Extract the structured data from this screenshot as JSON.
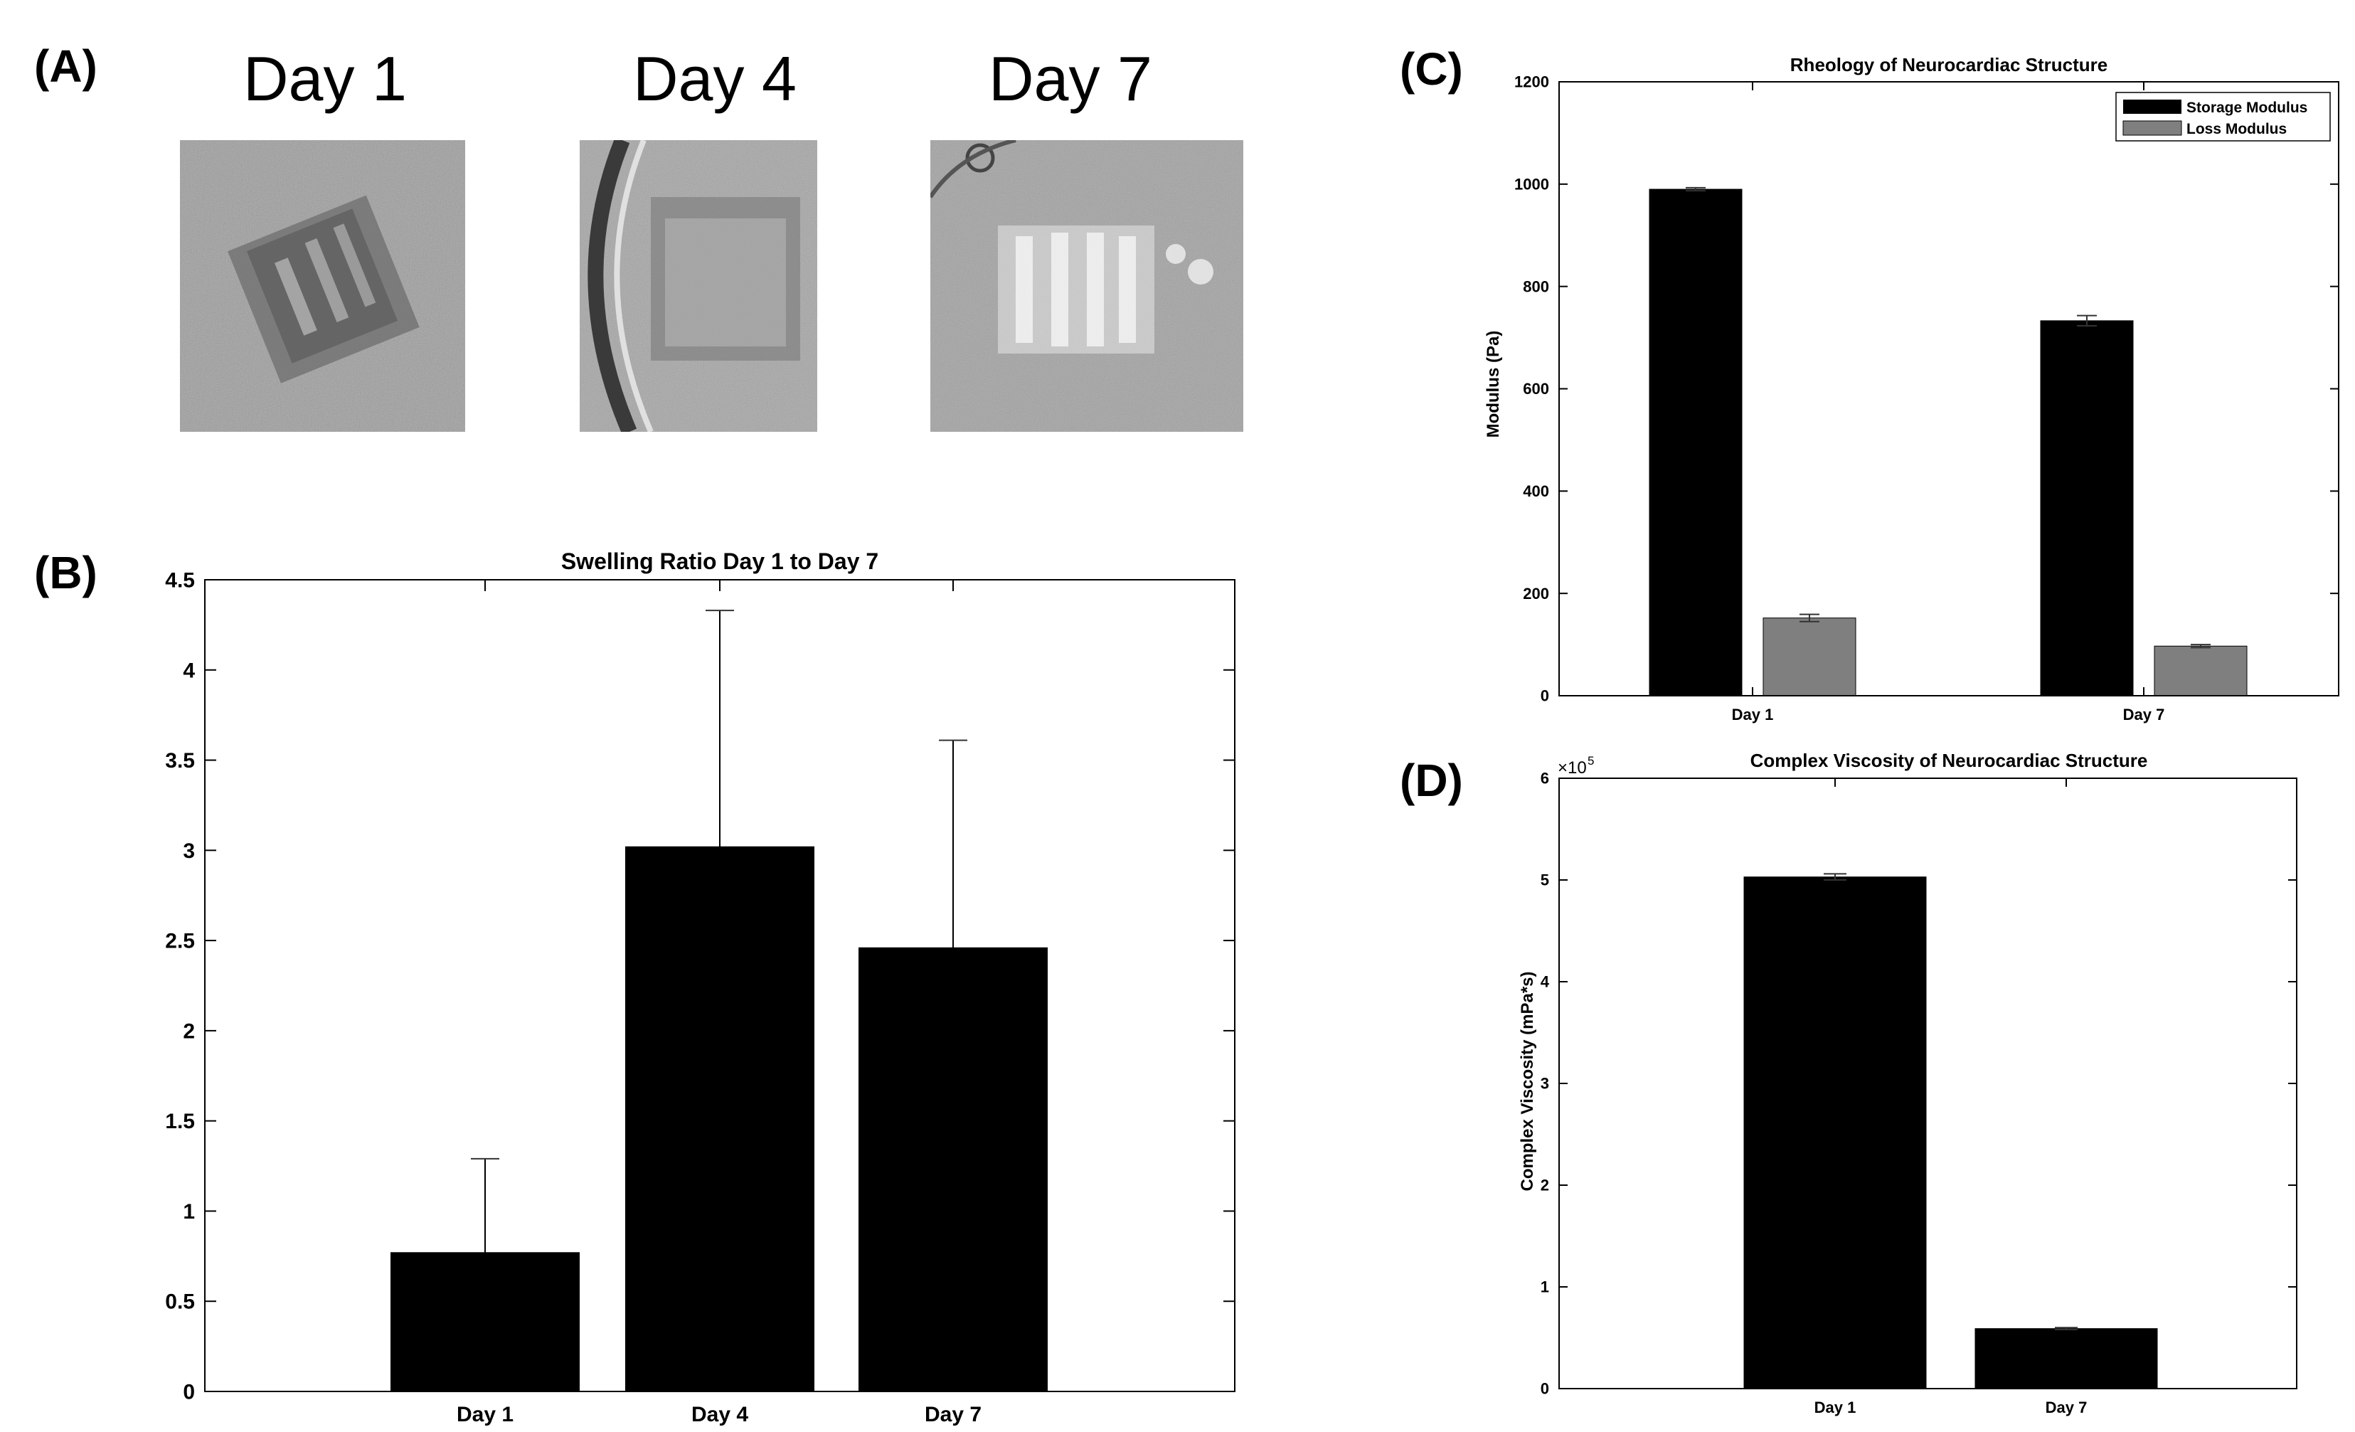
{
  "panels": {
    "a": "(A)",
    "b": "(B)",
    "c": "(C)",
    "d": "(D)"
  },
  "photos": {
    "labels": [
      "Day 1",
      "Day 4",
      "Day 7"
    ]
  },
  "chart_data": [
    {
      "id": "B",
      "type": "bar",
      "title": "Swelling Ratio Day 1 to Day 7",
      "categories": [
        "Day 1",
        "Day 4",
        "Day 7"
      ],
      "values": [
        0.77,
        3.02,
        2.46
      ],
      "errors": [
        0.52,
        1.31,
        1.15
      ],
      "ylim": [
        0,
        4.5
      ],
      "yticks": [
        "0",
        "0.5",
        "1",
        "1.5",
        "2",
        "2.5",
        "3",
        "3.5",
        "4",
        "4.5"
      ],
      "color": "#000000"
    },
    {
      "id": "C",
      "type": "bar",
      "title": "Rheology of Neurocardiac Structure",
      "ylabel": "Modulus (Pa)",
      "categories": [
        "Day 1",
        "Day 7"
      ],
      "series": [
        {
          "name": "Storage Modulus",
          "values": [
            990,
            733
          ],
          "errors": [
            3,
            10
          ],
          "color": "#000000"
        },
        {
          "name": "Loss Modulus",
          "values": [
            152,
            97
          ],
          "errors": [
            7,
            3
          ],
          "color": "#7f7f7f"
        }
      ],
      "ylim": [
        0,
        1200
      ],
      "yticks": [
        "0",
        "200",
        "400",
        "600",
        "800",
        "1000",
        "1200"
      ],
      "legend": "top-right"
    },
    {
      "id": "D",
      "type": "bar",
      "title": "Complex Viscosity of Neurocardiac Structure",
      "ylabel": "Complex Viscosity (mPa*s)",
      "exponent_base": "×10",
      "exponent_power": "5",
      "categories": [
        "Day 1",
        "Day 7"
      ],
      "values": [
        5.03,
        0.59
      ],
      "errors": [
        0.03,
        0.01
      ],
      "ylim": [
        0,
        6
      ],
      "yticks": [
        "0",
        "1",
        "2",
        "3",
        "4",
        "5",
        "6"
      ],
      "color": "#000000"
    }
  ]
}
